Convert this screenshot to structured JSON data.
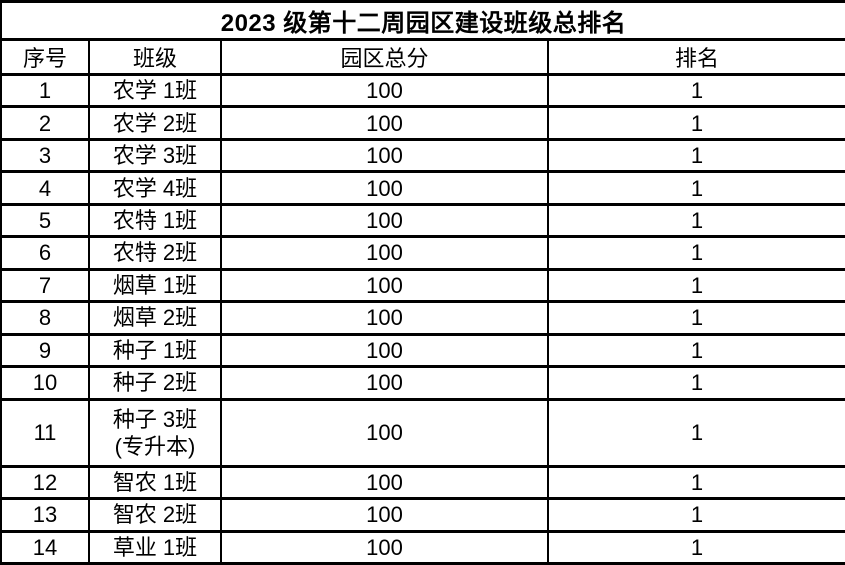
{
  "table": {
    "title": "2023 级第十二周园区建设班级总排名",
    "columns": [
      "序号",
      "班级",
      "园区总分",
      "排名"
    ],
    "rows": [
      {
        "no": "1",
        "class": "农学 1班",
        "score": "100",
        "rank": "1"
      },
      {
        "no": "2",
        "class": "农学 2班",
        "score": "100",
        "rank": "1"
      },
      {
        "no": "3",
        "class": "农学 3班",
        "score": "100",
        "rank": "1"
      },
      {
        "no": "4",
        "class": "农学 4班",
        "score": "100",
        "rank": "1"
      },
      {
        "no": "5",
        "class": "农特 1班",
        "score": "100",
        "rank": "1"
      },
      {
        "no": "6",
        "class": "农特 2班",
        "score": "100",
        "rank": "1"
      },
      {
        "no": "7",
        "class": "烟草 1班",
        "score": "100",
        "rank": "1"
      },
      {
        "no": "8",
        "class": "烟草 2班",
        "score": "100",
        "rank": "1"
      },
      {
        "no": "9",
        "class": "种子 1班",
        "score": "100",
        "rank": "1"
      },
      {
        "no": "10",
        "class": "种子 2班",
        "score": "100",
        "rank": "1"
      },
      {
        "no": "11",
        "class": "种子 3班\n(专升本)",
        "score": "100",
        "rank": "1"
      },
      {
        "no": "12",
        "class": "智农 1班",
        "score": "100",
        "rank": "1"
      },
      {
        "no": "13",
        "class": "智农 2班",
        "score": "100",
        "rank": "1"
      },
      {
        "no": "14",
        "class": "草业 1班",
        "score": "100",
        "rank": "1"
      }
    ]
  },
  "colors": {
    "background": "#ffffff",
    "border": "#000000",
    "text": "#000000"
  }
}
